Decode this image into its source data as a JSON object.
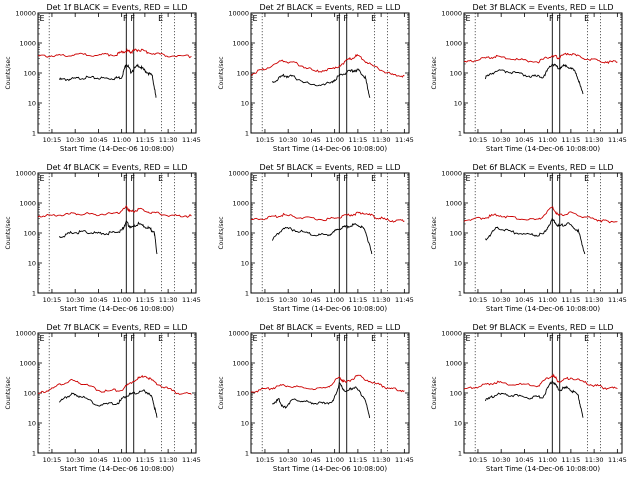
{
  "chart_data": [
    {
      "type": "line",
      "title": "Det 1f BLACK = Events, RED = LLD",
      "ylabel": "Counts/sec",
      "xlabel": "Start Time (14-Dec-06 10:08:00)",
      "x_ticks": [
        "10:15",
        "10:30",
        "10:45",
        "11:00",
        "11:15",
        "11:30",
        "11:45"
      ],
      "y_ticks": [
        "1",
        "10",
        "100",
        "1000",
        "10000"
      ],
      "markers": [
        "F",
        "F",
        "E"
      ],
      "y_scale": "log",
      "ylim": [
        1,
        10000
      ],
      "series": [
        {
          "color": "#000000",
          "values": [
            [
              10.33,
              60
            ],
            [
              10.45,
              62
            ],
            [
              10.6,
              70
            ],
            [
              10.75,
              68
            ],
            [
              10.9,
              65
            ],
            [
              11.0,
              72
            ],
            [
              11.05,
              210
            ],
            [
              11.1,
              110
            ],
            [
              11.18,
              180
            ],
            [
              11.25,
              120
            ],
            [
              11.33,
              80
            ],
            [
              11.37,
              15
            ]
          ]
        },
        {
          "color": "#cc0000",
          "values": [
            [
              10.1,
              360
            ],
            [
              10.3,
              380
            ],
            [
              10.5,
              410
            ],
            [
              10.75,
              400
            ],
            [
              10.95,
              420
            ],
            [
              11.05,
              560
            ],
            [
              11.1,
              500
            ],
            [
              11.18,
              600
            ],
            [
              11.3,
              470
            ],
            [
              11.5,
              380
            ],
            [
              11.75,
              360
            ]
          ]
        }
      ]
    },
    {
      "type": "line",
      "title": "Det 2f BLACK = Events, RED = LLD",
      "ylabel": "Counts/sec",
      "xlabel": "Start Time (14-Dec-06 10:08:00)",
      "x_ticks": [
        "10:15",
        "10:30",
        "10:45",
        "11:00",
        "11:15",
        "11:30",
        "11:45"
      ],
      "y_ticks": [
        "1",
        "10",
        "100",
        "1000",
        "10000"
      ],
      "markers": [
        "F",
        "F",
        "E"
      ],
      "y_scale": "log",
      "ylim": [
        1,
        10000
      ],
      "series": [
        {
          "color": "#000000",
          "values": [
            [
              10.33,
              50
            ],
            [
              10.45,
              80
            ],
            [
              10.55,
              75
            ],
            [
              10.75,
              40
            ],
            [
              10.95,
              45
            ],
            [
              11.05,
              80
            ],
            [
              11.15,
              110
            ],
            [
              11.25,
              130
            ],
            [
              11.33,
              70
            ],
            [
              11.38,
              15
            ]
          ]
        },
        {
          "color": "#cc0000",
          "values": [
            [
              10.1,
              90
            ],
            [
              10.25,
              140
            ],
            [
              10.45,
              260
            ],
            [
              10.6,
              200
            ],
            [
              10.8,
              110
            ],
            [
              11.0,
              140
            ],
            [
              11.15,
              280
            ],
            [
              11.25,
              380
            ],
            [
              11.4,
              180
            ],
            [
              11.6,
              90
            ],
            [
              11.75,
              80
            ]
          ]
        }
      ]
    },
    {
      "type": "line",
      "title": "Det 3f BLACK = Events, RED = LLD",
      "ylabel": "Counts/sec",
      "xlabel": "Start Time (14-Dec-06 10:08:00)",
      "x_ticks": [
        "10:15",
        "10:30",
        "10:45",
        "11:00",
        "11:15",
        "11:30",
        "11:45"
      ],
      "y_ticks": [
        "1",
        "10",
        "100",
        "1000",
        "10000"
      ],
      "markers": [
        "F",
        "F",
        "E"
      ],
      "y_scale": "log",
      "ylim": [
        1,
        10000
      ],
      "series": [
        {
          "color": "#000000",
          "values": [
            [
              10.33,
              70
            ],
            [
              10.45,
              120
            ],
            [
              10.6,
              110
            ],
            [
              10.8,
              80
            ],
            [
              10.95,
              75
            ],
            [
              11.05,
              200
            ],
            [
              11.12,
              150
            ],
            [
              11.2,
              180
            ],
            [
              11.3,
              110
            ],
            [
              11.38,
              20
            ]
          ]
        },
        {
          "color": "#cc0000",
          "values": [
            [
              10.1,
              220
            ],
            [
              10.3,
              300
            ],
            [
              10.45,
              360
            ],
            [
              10.65,
              280
            ],
            [
              10.9,
              240
            ],
            [
              11.05,
              380
            ],
            [
              11.12,
              320
            ],
            [
              11.22,
              460
            ],
            [
              11.4,
              300
            ],
            [
              11.6,
              240
            ],
            [
              11.75,
              230
            ]
          ]
        }
      ]
    },
    {
      "type": "line",
      "title": "Det 4f BLACK = Events, RED = LLD",
      "ylabel": "Counts/sec",
      "xlabel": "Start Time (14-Dec-06 10:08:00)",
      "x_ticks": [
        "10:15",
        "10:30",
        "10:45",
        "11:00",
        "11:15",
        "11:30",
        "11:45"
      ],
      "y_ticks": [
        "1",
        "10",
        "100",
        "1000",
        "10000"
      ],
      "markers": [
        "F",
        "F",
        "E"
      ],
      "y_scale": "log",
      "ylim": [
        1,
        10000
      ],
      "series": [
        {
          "color": "#000000",
          "values": [
            [
              10.33,
              70
            ],
            [
              10.45,
              100
            ],
            [
              10.6,
              110
            ],
            [
              10.75,
              95
            ],
            [
              10.9,
              100
            ],
            [
              11.0,
              120
            ],
            [
              11.05,
              230
            ],
            [
              11.1,
              150
            ],
            [
              11.18,
              200
            ],
            [
              11.28,
              150
            ],
            [
              11.35,
              110
            ],
            [
              11.38,
              20
            ]
          ]
        },
        {
          "color": "#cc0000",
          "values": [
            [
              10.1,
              370
            ],
            [
              10.3,
              390
            ],
            [
              10.5,
              450
            ],
            [
              10.7,
              420
            ],
            [
              10.95,
              440
            ],
            [
              11.05,
              720
            ],
            [
              11.1,
              500
            ],
            [
              11.2,
              650
            ],
            [
              11.35,
              460
            ],
            [
              11.55,
              380
            ],
            [
              11.75,
              370
            ]
          ]
        }
      ]
    },
    {
      "type": "line",
      "title": "Det 5f BLACK = Events, RED = LLD",
      "ylabel": "Counts/sec",
      "xlabel": "Start Time (14-Dec-06 10:08:00)",
      "x_ticks": [
        "10:15",
        "10:30",
        "10:45",
        "11:00",
        "11:15",
        "11:30",
        "11:45"
      ],
      "y_ticks": [
        "1",
        "10",
        "100",
        "1000",
        "10000"
      ],
      "markers": [
        "F",
        "F",
        "E"
      ],
      "y_scale": "log",
      "ylim": [
        1,
        10000
      ],
      "series": [
        {
          "color": "#000000",
          "values": [
            [
              10.33,
              60
            ],
            [
              10.45,
              150
            ],
            [
              10.6,
              120
            ],
            [
              10.8,
              85
            ],
            [
              10.95,
              90
            ],
            [
              11.05,
              140
            ],
            [
              11.15,
              170
            ],
            [
              11.25,
              190
            ],
            [
              11.33,
              120
            ],
            [
              11.4,
              20
            ]
          ]
        },
        {
          "color": "#cc0000",
          "values": [
            [
              10.1,
              260
            ],
            [
              10.3,
              330
            ],
            [
              10.45,
              400
            ],
            [
              10.65,
              320
            ],
            [
              10.9,
              280
            ],
            [
              11.05,
              330
            ],
            [
              11.2,
              420
            ],
            [
              11.3,
              480
            ],
            [
              11.45,
              330
            ],
            [
              11.6,
              260
            ],
            [
              11.75,
              250
            ]
          ]
        }
      ]
    },
    {
      "type": "line",
      "title": "Det 6f BLACK = Events, RED = LLD",
      "ylabel": "Counts/sec",
      "xlabel": "Start Time (14-Dec-06 10:08:00)",
      "x_ticks": [
        "10:15",
        "10:30",
        "10:45",
        "11:00",
        "11:15",
        "11:30",
        "11:45"
      ],
      "y_ticks": [
        "1",
        "10",
        "100",
        "1000",
        "10000"
      ],
      "markers": [
        "F",
        "F",
        "E"
      ],
      "y_scale": "log",
      "ylim": [
        1,
        10000
      ],
      "series": [
        {
          "color": "#000000",
          "values": [
            [
              10.33,
              60
            ],
            [
              10.45,
              150
            ],
            [
              10.6,
              110
            ],
            [
              10.8,
              85
            ],
            [
              10.95,
              90
            ],
            [
              11.05,
              280
            ],
            [
              11.12,
              170
            ],
            [
              11.22,
              210
            ],
            [
              11.33,
              120
            ],
            [
              11.4,
              20
            ]
          ]
        },
        {
          "color": "#cc0000",
          "values": [
            [
              10.1,
              260
            ],
            [
              10.3,
              320
            ],
            [
              10.45,
              400
            ],
            [
              10.65,
              320
            ],
            [
              10.9,
              270
            ],
            [
              11.05,
              700
            ],
            [
              11.12,
              380
            ],
            [
              11.25,
              460
            ],
            [
              11.45,
              320
            ],
            [
              11.6,
              250
            ],
            [
              11.75,
              240
            ]
          ]
        }
      ]
    },
    {
      "type": "line",
      "title": "Det 7f BLACK = Events, RED = LLD",
      "ylabel": "Counts/sec",
      "xlabel": "Start Time (14-Dec-06 10:08:00)",
      "x_ticks": [
        "10:15",
        "10:30",
        "10:45",
        "11:00",
        "11:15",
        "11:30",
        "11:45"
      ],
      "y_ticks": [
        "1",
        "10",
        "100",
        "1000",
        "10000"
      ],
      "markers": [
        "F",
        "F",
        "E"
      ],
      "y_scale": "log",
      "ylim": [
        1,
        10000
      ],
      "series": [
        {
          "color": "#000000",
          "values": [
            [
              10.33,
              50
            ],
            [
              10.45,
              90
            ],
            [
              10.55,
              80
            ],
            [
              10.75,
              40
            ],
            [
              10.95,
              45
            ],
            [
              11.05,
              80
            ],
            [
              11.15,
              100
            ],
            [
              11.25,
              120
            ],
            [
              11.33,
              70
            ],
            [
              11.38,
              15
            ]
          ]
        },
        {
          "color": "#cc0000",
          "values": [
            [
              10.1,
              90
            ],
            [
              10.25,
              140
            ],
            [
              10.45,
              270
            ],
            [
              10.6,
              200
            ],
            [
              10.8,
              110
            ],
            [
              11.0,
              130
            ],
            [
              11.15,
              280
            ],
            [
              11.25,
              380
            ],
            [
              11.4,
              190
            ],
            [
              11.6,
              100
            ],
            [
              11.75,
              90
            ]
          ]
        }
      ]
    },
    {
      "type": "line",
      "title": "Det 8f BLACK = Events, RED = LLD",
      "ylabel": "Counts/sec",
      "xlabel": "Start Time (14-Dec-06 10:08:00)",
      "x_ticks": [
        "10:15",
        "10:30",
        "10:45",
        "11:00",
        "11:15",
        "11:30",
        "11:45"
      ],
      "y_ticks": [
        "1",
        "10",
        "100",
        "1000",
        "10000"
      ],
      "markers": [
        "F",
        "F",
        "E"
      ],
      "y_scale": "log",
      "ylim": [
        1,
        10000
      ],
      "series": [
        {
          "color": "#000000",
          "values": [
            [
              10.33,
              45
            ],
            [
              10.4,
              60
            ],
            [
              10.45,
              30
            ],
            [
              10.55,
              60
            ],
            [
              10.7,
              50
            ],
            [
              10.85,
              45
            ],
            [
              10.98,
              50
            ],
            [
              11.05,
              200
            ],
            [
              11.12,
              110
            ],
            [
              11.22,
              160
            ],
            [
              11.32,
              70
            ],
            [
              11.38,
              15
            ]
          ]
        },
        {
          "color": "#cc0000",
          "values": [
            [
              10.1,
              110
            ],
            [
              10.3,
              140
            ],
            [
              10.45,
              180
            ],
            [
              10.65,
              150
            ],
            [
              10.9,
              140
            ],
            [
              11.05,
              330
            ],
            [
              11.12,
              220
            ],
            [
              11.25,
              380
            ],
            [
              11.45,
              200
            ],
            [
              11.6,
              140
            ],
            [
              11.75,
              120
            ]
          ]
        }
      ]
    },
    {
      "type": "line",
      "title": "Det 9f BLACK = Events, RED = LLD",
      "ylabel": "Counts/sec",
      "xlabel": "Start Time (14-Dec-06 10:08:00)",
      "x_ticks": [
        "10:15",
        "10:30",
        "10:45",
        "11:00",
        "11:15",
        "11:30",
        "11:45"
      ],
      "y_ticks": [
        "1",
        "10",
        "100",
        "1000",
        "10000"
      ],
      "markers": [
        "F",
        "F",
        "E"
      ],
      "y_scale": "log",
      "ylim": [
        1,
        10000
      ],
      "series": [
        {
          "color": "#000000",
          "values": [
            [
              10.33,
              55
            ],
            [
              10.45,
              90
            ],
            [
              10.6,
              85
            ],
            [
              10.8,
              70
            ],
            [
              10.95,
              75
            ],
            [
              11.05,
              260
            ],
            [
              11.12,
              130
            ],
            [
              11.22,
              150
            ],
            [
              11.33,
              80
            ],
            [
              11.38,
              15
            ]
          ]
        },
        {
          "color": "#cc0000",
          "values": [
            [
              10.1,
              130
            ],
            [
              10.3,
              180
            ],
            [
              10.45,
              230
            ],
            [
              10.65,
              190
            ],
            [
              10.9,
              180
            ],
            [
              11.05,
              400
            ],
            [
              11.12,
              240
            ],
            [
              11.25,
              320
            ],
            [
              11.45,
              200
            ],
            [
              11.6,
              150
            ],
            [
              11.75,
              140
            ]
          ]
        }
      ]
    }
  ]
}
